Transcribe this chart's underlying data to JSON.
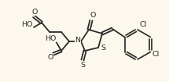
{
  "bg_color": "#fdf8ed",
  "line_color": "#2a2a2a",
  "lw": 1.3,
  "fontsize": 6.8,
  "figsize": [
    2.15,
    1.05
  ],
  "dpi": 100,
  "xlim": [
    0,
    215
  ],
  "ylim": [
    0,
    105
  ]
}
